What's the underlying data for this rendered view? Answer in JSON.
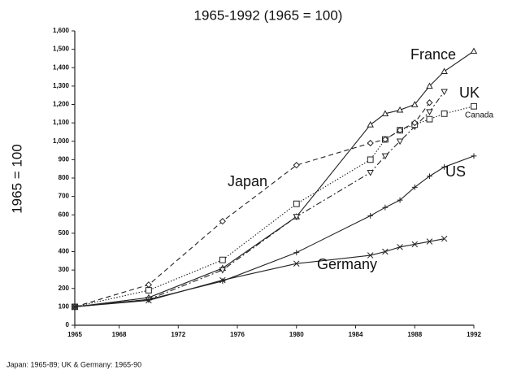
{
  "chart_data": {
    "type": "line",
    "title": "1965-1992 (1965 = 100)",
    "y_label": "1965 = 100",
    "footnote": "Japan: 1965-89; UK & Germany: 1965-90",
    "xlim": [
      1965,
      1992
    ],
    "xticks": [
      1965,
      1968,
      1972,
      1976,
      1980,
      1984,
      1988,
      1992
    ],
    "ylim": [
      0,
      1600
    ],
    "yticks": [
      0,
      100,
      200,
      300,
      400,
      500,
      600,
      700,
      800,
      900,
      {
        "value": 1000,
        "label": "1,000"
      },
      {
        "value": 1100,
        "label": "1,100"
      },
      {
        "value": 1200,
        "label": "1,200"
      },
      {
        "value": 1300,
        "label": "1,300"
      },
      {
        "value": 1400,
        "label": "1,400"
      },
      {
        "value": 1500,
        "label": "1,500"
      },
      {
        "value": 1600,
        "label": "1,600"
      }
    ],
    "series": [
      {
        "name": "France",
        "color": "#222",
        "marker": "triangle",
        "dash": "solid",
        "x": [
          1965,
          1970,
          1975,
          1980,
          1985,
          1986,
          1987,
          1988,
          1989,
          1990,
          1992
        ],
        "values": [
          100,
          150,
          310,
          590,
          1090,
          1150,
          1170,
          1200,
          1300,
          1380,
          1490
        ]
      },
      {
        "name": "UK",
        "color": "#222",
        "marker": "triangle-down",
        "dash": "dashdot",
        "x": [
          1965,
          1970,
          1975,
          1980,
          1985,
          1986,
          1987,
          1988,
          1989,
          1990
        ],
        "values": [
          100,
          140,
          300,
          590,
          830,
          920,
          1000,
          1080,
          1160,
          1270
        ]
      },
      {
        "name": "Canada",
        "color": "#222",
        "marker": "square",
        "dash": "dotted",
        "x": [
          1965,
          1970,
          1975,
          1980,
          1985,
          1986,
          1987,
          1988,
          1989,
          1990,
          1992
        ],
        "values": [
          100,
          190,
          355,
          660,
          900,
          1010,
          1060,
          1090,
          1120,
          1150,
          1190
        ]
      },
      {
        "name": "Japan",
        "color": "#222",
        "marker": "diamond",
        "dash": "dashed",
        "x": [
          1965,
          1970,
          1975,
          1980,
          1985,
          1986,
          1987,
          1988,
          1989
        ],
        "values": [
          100,
          220,
          565,
          870,
          990,
          1010,
          1060,
          1100,
          1210
        ]
      },
      {
        "name": "US",
        "color": "#222",
        "marker": "plus",
        "dash": "solid",
        "x": [
          1965,
          1970,
          1975,
          1980,
          1985,
          1986,
          1987,
          1988,
          1989,
          1990,
          1992
        ],
        "values": [
          100,
          140,
          240,
          395,
          595,
          640,
          680,
          750,
          810,
          860,
          920
        ]
      },
      {
        "name": "Germany",
        "color": "#222",
        "marker": "cross",
        "dash": "solid",
        "x": [
          1965,
          1970,
          1975,
          1980,
          1985,
          1986,
          1987,
          1988,
          1989,
          1990
        ],
        "values": [
          100,
          135,
          245,
          335,
          380,
          400,
          425,
          440,
          455,
          470
        ]
      }
    ]
  }
}
